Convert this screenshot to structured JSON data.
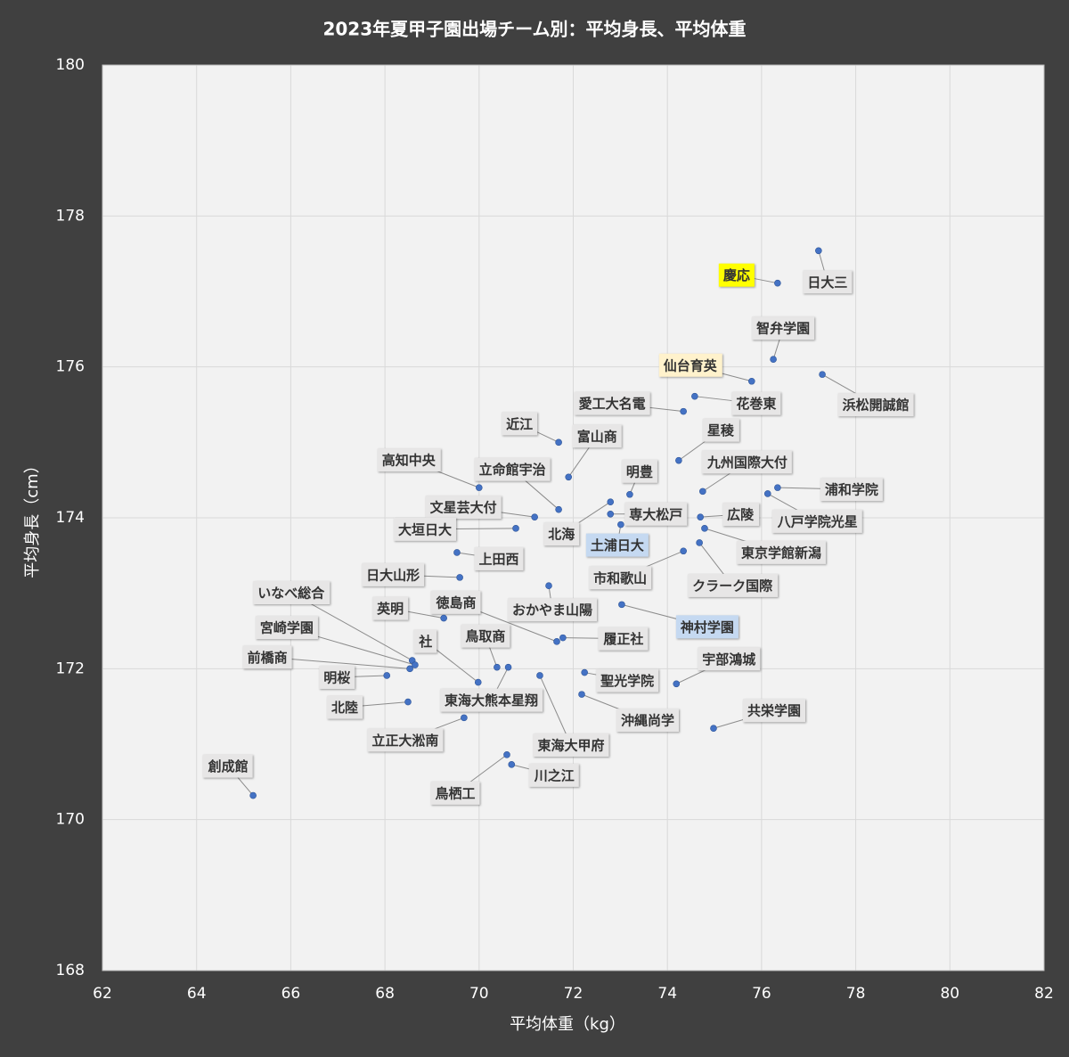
{
  "chart_data": {
    "type": "scatter",
    "title": "2023年夏甲子園出場チーム別：平均身長、平均体重",
    "x_label": "平均体重（kg）",
    "y_label": "平均身長（cm）",
    "color": "#4472c4",
    "grid": true,
    "xlim": [
      62,
      82
    ],
    "xticks": [
      62,
      64,
      66,
      68,
      70,
      72,
      74,
      76,
      78,
      80,
      82
    ],
    "ylim": [
      168,
      180
    ],
    "yticks": [
      168,
      170,
      172,
      174,
      176,
      178,
      180
    ],
    "labels": [
      "日大三",
      "慶応",
      "智弁学園",
      "仙台育英",
      "浜松開誠館",
      "花巻東",
      "愛工大名電",
      "近江",
      "富山商",
      "星稜",
      "九州国際大付",
      "浦和学院",
      "八戸学院光星",
      "高知中央",
      "立命館宇治",
      "明豊",
      "北海",
      "専大松戸",
      "土浦日大",
      "文星芸大付",
      "大垣日大",
      "広陵",
      "東京学館新潟",
      "クラーク国際",
      "市和歌山",
      "上田西",
      "日大山形",
      "おかやま山陽",
      "神村学園",
      "徳島商",
      "履正社",
      "英明",
      "いなべ総合",
      "宮崎学園",
      "前橋商",
      "社",
      "鳥取商",
      "東海大熊本星翔",
      "明桜",
      "北陸",
      "立正大淞南",
      "東海大甲府",
      "聖光学院",
      "沖縄尚学",
      "宇部鴻城",
      "共栄学園",
      "川之江",
      "鳥栖工",
      "創成館"
    ],
    "x": [
      77.21,
      76.34,
      76.25,
      75.79,
      77.29,
      74.58,
      74.34,
      71.69,
      71.9,
      74.24,
      74.75,
      76.34,
      76.13,
      70.0,
      71.69,
      73.2,
      72.79,
      72.79,
      73.01,
      71.18,
      70.78,
      74.7,
      74.79,
      74.68,
      74.34,
      69.53,
      69.59,
      71.48,
      73.03,
      71.65,
      71.78,
      69.25,
      68.58,
      68.64,
      68.53,
      69.98,
      70.38,
      70.62,
      68.04,
      68.49,
      69.68,
      71.29,
      72.24,
      72.18,
      74.19,
      74.98,
      70.69,
      70.59,
      65.2
    ],
    "values": [
      177.54,
      177.11,
      176.1,
      175.81,
      175.9,
      175.61,
      175.41,
      175.0,
      174.54,
      174.76,
      174.35,
      174.4,
      174.32,
      174.4,
      174.11,
      174.31,
      174.21,
      174.05,
      173.91,
      174.01,
      173.86,
      174.01,
      173.86,
      173.67,
      173.56,
      173.54,
      173.21,
      173.1,
      172.85,
      172.36,
      172.41,
      172.67,
      172.11,
      172.05,
      172.0,
      171.82,
      172.02,
      172.02,
      171.91,
      171.56,
      171.35,
      171.91,
      171.95,
      171.66,
      171.8,
      171.21,
      170.73,
      170.86,
      170.32
    ],
    "label_colors": [
      "#e7e6e6",
      "#ffff00",
      "#e7e6e6",
      "#fff2cc",
      "#e7e6e6",
      "#e7e6e6",
      "#e7e6e6",
      "#e7e6e6",
      "#e7e6e6",
      "#e7e6e6",
      "#e7e6e6",
      "#e7e6e6",
      "#e7e6e6",
      "#e7e6e6",
      "#e7e6e6",
      "#e7e6e6",
      "#e7e6e6",
      "#e7e6e6",
      "#c5d9f1",
      "#e7e6e6",
      "#e7e6e6",
      "#e7e6e6",
      "#e7e6e6",
      "#e7e6e6",
      "#e7e6e6",
      "#e7e6e6",
      "#e7e6e6",
      "#e7e6e6",
      "#c5d9f1",
      "#e7e6e6",
      "#e7e6e6",
      "#e7e6e6",
      "#e7e6e6",
      "#e7e6e6",
      "#e7e6e6",
      "#e7e6e6",
      "#e7e6e6",
      "#e7e6e6",
      "#e7e6e6",
      "#e7e6e6",
      "#e7e6e6",
      "#e7e6e6",
      "#e7e6e6",
      "#e7e6e6",
      "#e7e6e6",
      "#e7e6e6",
      "#e7e6e6",
      "#e7e6e6",
      "#e7e6e6"
    ]
  }
}
